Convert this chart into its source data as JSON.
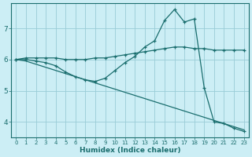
{
  "xlabel": "Humidex (Indice chaleur)",
  "background_color": "#cceef5",
  "grid_color": "#99ccd6",
  "line_color": "#1a6e6e",
  "xlim": [
    -0.5,
    23.5
  ],
  "ylim": [
    3.5,
    7.8
  ],
  "yticks": [
    4,
    5,
    6,
    7
  ],
  "xticks": [
    0,
    1,
    2,
    3,
    4,
    5,
    6,
    7,
    8,
    9,
    10,
    11,
    12,
    13,
    14,
    15,
    16,
    17,
    18,
    19,
    20,
    21,
    22,
    23
  ],
  "line1_x": [
    0,
    1,
    2,
    3,
    4,
    5,
    6,
    7,
    8,
    9,
    10,
    11,
    12,
    13,
    14,
    15,
    16,
    17,
    18,
    19,
    20,
    21,
    22,
    23
  ],
  "line1_y": [
    6.0,
    6.05,
    6.05,
    6.05,
    6.05,
    6.0,
    6.0,
    6.0,
    6.05,
    6.05,
    6.1,
    6.15,
    6.2,
    6.25,
    6.3,
    6.35,
    6.4,
    6.4,
    6.35,
    6.35,
    6.3,
    6.3,
    6.3,
    6.3
  ],
  "line2_x": [
    0,
    1,
    2,
    3,
    4,
    5,
    6,
    7,
    8,
    9,
    10,
    11,
    12,
    13,
    14,
    15,
    16,
    17,
    18,
    19,
    20,
    21,
    22,
    23
  ],
  "line2_y": [
    6.0,
    6.0,
    5.95,
    5.9,
    5.8,
    5.6,
    5.45,
    5.35,
    5.3,
    5.4,
    5.65,
    5.9,
    6.1,
    6.4,
    6.6,
    7.25,
    7.6,
    7.2,
    7.3,
    5.1,
    4.0,
    3.95,
    3.8,
    3.7
  ],
  "line3_x": [
    0,
    1,
    2,
    3,
    4,
    5,
    6,
    7,
    8,
    9,
    10,
    11,
    12,
    13,
    14,
    15,
    16,
    17,
    18,
    19,
    20,
    21,
    22,
    23
  ],
  "line3_y": [
    6.0,
    5.95,
    5.85,
    5.75,
    5.65,
    5.55,
    5.45,
    5.35,
    5.25,
    5.15,
    5.05,
    4.95,
    4.85,
    4.75,
    4.65,
    4.55,
    4.45,
    4.35,
    4.25,
    4.15,
    4.05,
    3.95,
    3.85,
    3.75
  ]
}
